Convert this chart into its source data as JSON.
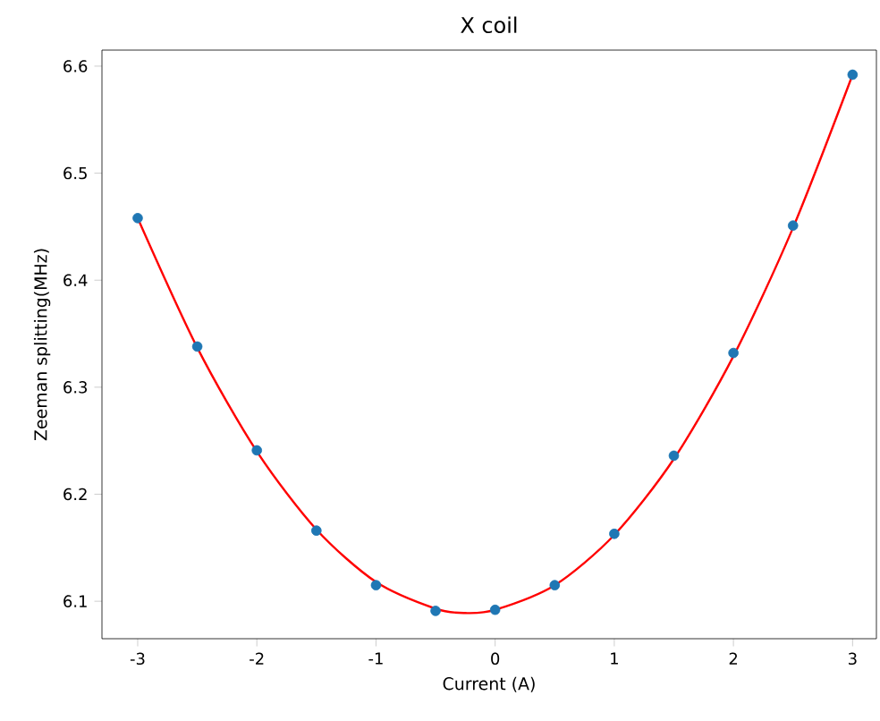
{
  "chart_data": {
    "type": "scatter",
    "title": "X coil",
    "xlabel": "Current (A)",
    "ylabel": "Zeeman splitting(MHz)",
    "xlim": [
      -3.3,
      3.2
    ],
    "ylim": [
      6.065,
      6.615
    ],
    "xticks": [
      -3,
      -2,
      -1,
      0,
      1,
      2,
      3
    ],
    "yticks": [
      6.1,
      6.2,
      6.3,
      6.4,
      6.5,
      6.6
    ],
    "grid": false,
    "series": [
      {
        "marker": "circle",
        "color": "#1f77b4",
        "x": [
          -3,
          -2.5,
          -2,
          -1.5,
          -1,
          -0.5,
          0,
          0.5,
          1,
          1.5,
          2,
          2.5,
          3
        ],
        "values": [
          6.458,
          6.338,
          6.241,
          6.166,
          6.115,
          6.091,
          6.092,
          6.115,
          6.163,
          6.236,
          6.332,
          6.451,
          6.592
        ]
      },
      {
        "type": "line",
        "line_style": "solid",
        "marker": "none",
        "color": "#ff0000",
        "x": [
          -3,
          -2.5,
          -2,
          -1.5,
          -1,
          -0.5,
          -0.25,
          0,
          0.5,
          1,
          1.5,
          2,
          2.5,
          3
        ],
        "values": [
          6.458,
          6.337,
          6.24,
          6.167,
          6.118,
          6.093,
          6.089,
          6.092,
          6.115,
          6.162,
          6.233,
          6.329,
          6.449,
          6.592
        ]
      }
    ]
  }
}
